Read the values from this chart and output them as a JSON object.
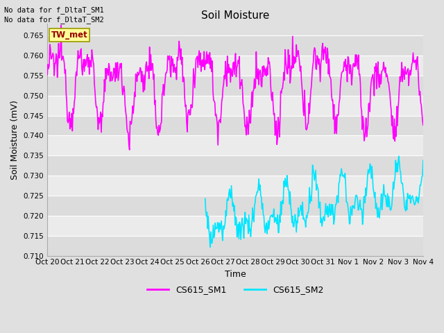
{
  "title": "Soil Moisture",
  "xlabel": "Time",
  "ylabel": "Soil Moisture (mV)",
  "ylim": [
    0.71,
    0.768
  ],
  "yticks": [
    0.71,
    0.715,
    0.72,
    0.725,
    0.73,
    0.735,
    0.74,
    0.745,
    0.75,
    0.755,
    0.76,
    0.765
  ],
  "xtick_labels": [
    "Oct 20",
    "Oct 21",
    "Oct 22",
    "Oct 23",
    "Oct 24",
    "Oct 25",
    "Oct 26",
    "Oct 27",
    "Oct 28",
    "Oct 29",
    "Oct 30",
    "Oct 31",
    "Nov 1",
    "Nov 2",
    "Nov 3",
    "Nov 4"
  ],
  "no_data_text1": "No data for f_DltaT_SM1",
  "no_data_text2": "No data for f_DltaT_SM2",
  "tw_met_label": "TW_met",
  "legend_labels": [
    "CS615_SM1",
    "CS615_SM2"
  ],
  "line1_color": "#FF00FF",
  "line2_color": "#00E5FF",
  "bg_color": "#E0E0E0",
  "band_light": "#EBEBEB",
  "band_dark": "#DCDCDC",
  "grid_color": "#FFFFFF",
  "tw_met_bg": "#FFFF99",
  "tw_met_fg": "#990000",
  "tw_met_border": "#999900"
}
